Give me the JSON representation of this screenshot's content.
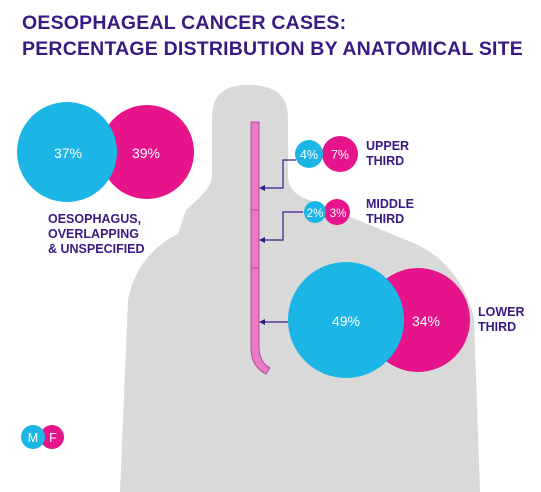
{
  "title_line1": "OESOPHAGEAL CANCER CASES:",
  "title_line2": "PERCENTAGE DISTRIBUTION BY ANATOMICAL SITE",
  "colors": {
    "male": "#1bb5e6",
    "female": "#e5148a",
    "title": "#3a1a82",
    "silhouette": "#d9d9d9",
    "oesophagus": "#e77cc6"
  },
  "sites": [
    {
      "id": "oesophagus-overlapping",
      "label_lines": [
        "OESOPHAGUS,",
        "OVERLAPPING",
        "& UNSPECIFIED"
      ],
      "male": "37%",
      "female": "39%"
    },
    {
      "id": "upper-third",
      "label_lines": [
        "UPPER",
        "THIRD"
      ],
      "male": "4%",
      "female": "7%"
    },
    {
      "id": "middle-third",
      "label_lines": [
        "MIDDLE",
        "THIRD"
      ],
      "male": "2%",
      "female": "3%"
    },
    {
      "id": "lower-third",
      "label_lines": [
        "LOWER",
        "THIRD"
      ],
      "male": "49%",
      "female": "34%"
    }
  ],
  "legend": {
    "male": "M",
    "female": "F"
  }
}
